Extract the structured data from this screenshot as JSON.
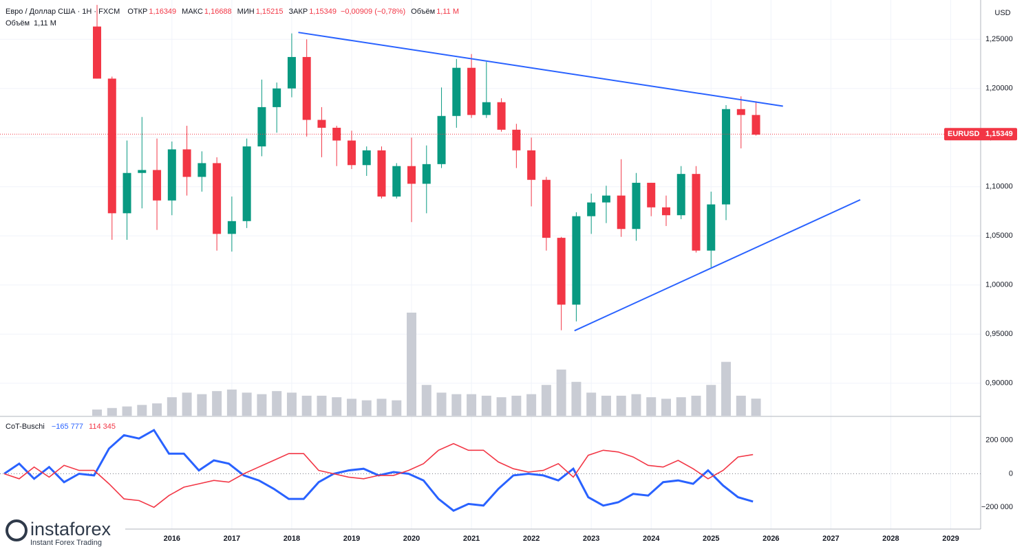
{
  "chart_data": [
    {
      "type": "candlestick",
      "title": "Евро / Доллар США · 1Н · FXCM",
      "stats": [
        {
          "label": "ОТКР",
          "value": "1,16349"
        },
        {
          "label": "МАКС",
          "value": "1,16688"
        },
        {
          "label": "МИН",
          "value": "1,15215"
        },
        {
          "label": "ЗАКР",
          "value": "1,15349"
        },
        {
          "label": "",
          "value": "−0,00909 (−0,78%)"
        },
        {
          "label": "Объём",
          "value": "1,11 M"
        }
      ],
      "volume_label": {
        "label": "Объём",
        "value": "1,11 M"
      },
      "currency": "USD",
      "x": [
        2014.75,
        2015,
        2015.25,
        2015.5,
        2015.75,
        2016,
        2016.25,
        2016.5,
        2016.75,
        2017,
        2017.25,
        2017.5,
        2017.75,
        2018,
        2018.25,
        2018.5,
        2018.75,
        2019,
        2019.25,
        2019.5,
        2019.75,
        2020,
        2020.25,
        2020.5,
        2020.75,
        2021,
        2021.25,
        2021.5,
        2021.75,
        2022,
        2022.25,
        2022.5,
        2022.75,
        2023,
        2023.25,
        2023.5,
        2023.75,
        2024,
        2024.25,
        2024.5,
        2024.75,
        2025,
        2025.25,
        2025.5,
        2025.75
      ],
      "open": [
        1.263,
        1.21,
        1.073,
        1.114,
        1.117,
        1.086,
        1.138,
        1.11,
        1.124,
        1.052,
        1.065,
        1.141,
        1.181,
        1.2,
        1.232,
        1.168,
        1.16,
        1.147,
        1.122,
        1.137,
        1.09,
        1.121,
        1.103,
        1.123,
        1.172,
        1.221,
        1.173,
        1.186,
        1.158,
        1.137,
        1.107,
        1.048,
        0.98,
        1.07,
        1.084,
        1.091,
        1.057,
        1.104,
        1.079,
        1.071,
        1.113,
        1.035,
        1.082,
        1.179,
        1.173
      ],
      "high": [
        1.285,
        1.212,
        1.147,
        1.171,
        1.149,
        1.146,
        1.162,
        1.136,
        1.13,
        1.09,
        1.149,
        1.209,
        1.206,
        1.256,
        1.25,
        1.181,
        1.162,
        1.157,
        1.141,
        1.141,
        1.124,
        1.15,
        1.142,
        1.201,
        1.23,
        1.235,
        1.227,
        1.19,
        1.164,
        1.15,
        1.11,
        1.049,
        1.074,
        1.093,
        1.101,
        1.128,
        1.114,
        1.104,
        1.091,
        1.121,
        1.121,
        1.095,
        1.183,
        1.192,
        1.187
      ],
      "low": [
        1.21,
        1.046,
        1.046,
        1.078,
        1.056,
        1.071,
        1.091,
        1.095,
        1.035,
        1.034,
        1.058,
        1.131,
        1.155,
        1.191,
        1.151,
        1.13,
        1.121,
        1.118,
        1.111,
        1.088,
        1.088,
        1.064,
        1.073,
        1.119,
        1.16,
        1.17,
        1.17,
        1.156,
        1.119,
        1.08,
        1.035,
        0.954,
        0.963,
        1.052,
        1.063,
        1.049,
        1.045,
        1.07,
        1.06,
        1.067,
        1.033,
        1.018,
        1.066,
        1.139,
        1.152
      ],
      "close": [
        1.21,
        1.073,
        1.114,
        1.117,
        1.086,
        1.138,
        1.11,
        1.124,
        1.052,
        1.065,
        1.141,
        1.181,
        1.2,
        1.232,
        1.168,
        1.16,
        1.147,
        1.122,
        1.137,
        1.09,
        1.121,
        1.103,
        1.123,
        1.172,
        1.221,
        1.173,
        1.186,
        1.158,
        1.137,
        1.107,
        1.048,
        0.98,
        1.07,
        1.084,
        1.091,
        1.057,
        1.104,
        1.079,
        1.071,
        1.113,
        1.035,
        1.082,
        1.179,
        1.173,
        1.153
      ],
      "volume": [
        0.4,
        0.5,
        0.6,
        0.7,
        0.8,
        1.2,
        1.5,
        1.4,
        1.6,
        1.7,
        1.5,
        1.4,
        1.6,
        1.5,
        1.3,
        1.3,
        1.2,
        1.1,
        1.0,
        1.1,
        1.0,
        6.7,
        2.0,
        1.5,
        1.4,
        1.4,
        1.3,
        1.2,
        1.3,
        1.4,
        2.0,
        3.0,
        2.2,
        1.5,
        1.3,
        1.3,
        1.4,
        1.2,
        1.1,
        1.2,
        1.3,
        2.0,
        3.5,
        1.3,
        1.11
      ],
      "up_color": "#089981",
      "down_color": "#f23645",
      "volume_color": "#c9ccd4",
      "last_price": {
        "name": "EURUSD",
        "value": 1.15349,
        "label": "1,15349",
        "color": "#f23645"
      },
      "trendlines": [
        {
          "x": [
            2018.11,
            2026.2
          ],
          "y": [
            1.257,
            1.182
          ],
          "color": "#2962ff"
        },
        {
          "x": [
            2022.72,
            2027.49
          ],
          "y": [
            0.9535,
            1.0867
          ],
          "color": "#2962ff"
        }
      ],
      "xlim": [
        2013.13,
        2029.5
      ],
      "xticks": [
        2016,
        2017,
        2018,
        2019,
        2020,
        2021,
        2022,
        2023,
        2024,
        2025,
        2026,
        2027,
        2028,
        2029
      ],
      "ylim": [
        0.867,
        1.29
      ],
      "yticks": [
        {
          "value": 0.9,
          "label": "0,90000"
        },
        {
          "value": 0.95,
          "label": "0,95000"
        },
        {
          "value": 1.0,
          "label": "1,00000"
        },
        {
          "value": 1.05,
          "label": "1,05000"
        },
        {
          "value": 1.1,
          "label": "1,10000"
        },
        {
          "value": 1.15,
          "label": "1,15000"
        },
        {
          "value": 1.2,
          "label": "1,20000"
        },
        {
          "value": 1.25,
          "label": "1,25000"
        }
      ],
      "grid": true
    },
    {
      "type": "line",
      "title": "CoT-Buschi",
      "x": [
        2013.2,
        2013.45,
        2013.7,
        2013.95,
        2014.2,
        2014.45,
        2014.7,
        2014.95,
        2015.2,
        2015.45,
        2015.7,
        2015.95,
        2016.2,
        2016.45,
        2016.7,
        2016.95,
        2017.2,
        2017.45,
        2017.7,
        2017.95,
        2018.2,
        2018.45,
        2018.7,
        2018.95,
        2019.2,
        2019.45,
        2019.7,
        2019.95,
        2020.2,
        2020.45,
        2020.7,
        2020.95,
        2021.2,
        2021.45,
        2021.7,
        2021.95,
        2022.2,
        2022.45,
        2022.7,
        2022.95,
        2023.2,
        2023.45,
        2023.7,
        2023.95,
        2024.2,
        2024.45,
        2024.7,
        2024.95,
        2025.2,
        2025.45,
        2025.7
      ],
      "series": [
        {
          "color": "#2962ff",
          "value_label": "−165 777",
          "values": [
            0,
            60000,
            -30000,
            40000,
            -50000,
            0,
            -10000,
            150000,
            230000,
            210000,
            260000,
            120000,
            120000,
            20000,
            80000,
            60000,
            -10000,
            -40000,
            -90000,
            -150000,
            -150000,
            -50000,
            0,
            20000,
            30000,
            -10000,
            10000,
            0,
            -40000,
            -150000,
            -220000,
            -180000,
            -190000,
            -90000,
            -10000,
            0,
            -10000,
            -40000,
            30000,
            -140000,
            -190000,
            -170000,
            -120000,
            -130000,
            -50000,
            -40000,
            -60000,
            20000,
            -70000,
            -140000,
            -165777
          ]
        },
        {
          "color": "#f23645",
          "value_label": "114 345",
          "values": [
            0,
            -30000,
            40000,
            -20000,
            50000,
            20000,
            20000,
            -60000,
            -150000,
            -160000,
            -200000,
            -130000,
            -80000,
            -60000,
            -40000,
            -50000,
            0,
            40000,
            80000,
            120000,
            120000,
            20000,
            0,
            -20000,
            -30000,
            -10000,
            -10000,
            20000,
            60000,
            140000,
            180000,
            140000,
            140000,
            70000,
            30000,
            10000,
            20000,
            60000,
            -20000,
            110000,
            140000,
            130000,
            100000,
            50000,
            40000,
            80000,
            30000,
            -30000,
            20000,
            100000,
            114345
          ]
        }
      ],
      "ylim": [
        -330000,
        338000
      ],
      "yticks": [
        {
          "value": -200000,
          "label": "−200 000"
        },
        0,
        {
          "value": 200000,
          "label": "200 000"
        }
      ]
    }
  ],
  "logo": {
    "name": "instaforex",
    "tagline": "Instant Forex Trading"
  }
}
